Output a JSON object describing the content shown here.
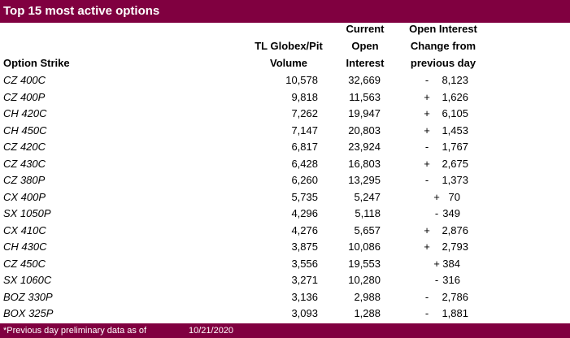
{
  "title": "Top 15 most active options",
  "headers": {
    "strike": "Option Strike",
    "volume": [
      "TL Globex/Pit",
      "Volume"
    ],
    "open_interest": [
      "Current",
      "Open",
      "Interest"
    ],
    "change": [
      "Open Interest",
      "Change from",
      "previous day"
    ]
  },
  "rows": [
    {
      "strike": "CZ 400C",
      "volume": "10,578",
      "oi": "32,669",
      "sign": "-",
      "change": "8,123"
    },
    {
      "strike": "CZ 400P",
      "volume": "9,818",
      "oi": "11,563",
      "sign": "+",
      "change": "1,626"
    },
    {
      "strike": "CH 420C",
      "volume": "7,262",
      "oi": "19,947",
      "sign": "+",
      "change": "6,105"
    },
    {
      "strike": "CH 450C",
      "volume": "7,147",
      "oi": "20,803",
      "sign": "+",
      "change": "1,453"
    },
    {
      "strike": "CZ 420C",
      "volume": "6,817",
      "oi": "23,924",
      "sign": "-",
      "change": "1,767"
    },
    {
      "strike": "CZ 430C",
      "volume": "6,428",
      "oi": "16,803",
      "sign": "+",
      "change": "2,675"
    },
    {
      "strike": "CZ 380P",
      "volume": "6,260",
      "oi": "13,295",
      "sign": "-",
      "change": "1,373"
    },
    {
      "strike": "CX 400P",
      "volume": "5,735",
      "oi": "5,247",
      "sign": "+",
      "change": "70"
    },
    {
      "strike": "SX 1050P",
      "volume": "4,296",
      "oi": "5,118",
      "sign": "-",
      "change": "349"
    },
    {
      "strike": "CX 410C",
      "volume": "4,276",
      "oi": "5,657",
      "sign": "+",
      "change": "2,876"
    },
    {
      "strike": "CH 430C",
      "volume": "3,875",
      "oi": "10,086",
      "sign": "+",
      "change": "2,793"
    },
    {
      "strike": "CZ 450C",
      "volume": "3,556",
      "oi": "19,553",
      "sign": "+",
      "change": "384"
    },
    {
      "strike": "SX 1060C",
      "volume": "3,271",
      "oi": "10,280",
      "sign": "-",
      "change": "316"
    },
    {
      "strike": "BOZ 330P",
      "volume": "3,136",
      "oi": "2,988",
      "sign": "-",
      "change": "2,786"
    },
    {
      "strike": "BOX 325P",
      "volume": "3,093",
      "oi": "1,288",
      "sign": "-",
      "change": "1,881"
    }
  ],
  "footer": {
    "note": "*Previous day preliminary data as of",
    "date": "10/21/2020"
  },
  "colors": {
    "bar": "#800040"
  }
}
